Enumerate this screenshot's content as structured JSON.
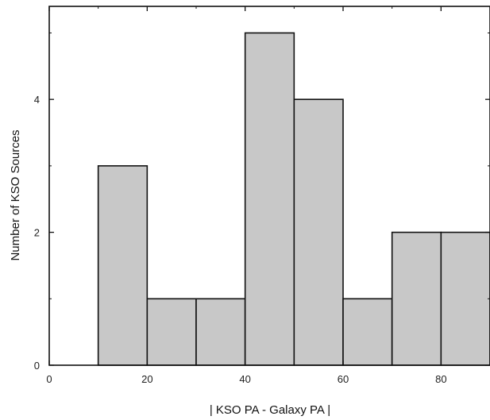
{
  "chart_data": {
    "type": "bar",
    "title": "",
    "xlabel": "| KSO PA - Galaxy PA |",
    "ylabel": "Number of KSO Sources",
    "xlim": [
      0,
      90
    ],
    "ylim": [
      0,
      5.4
    ],
    "x_ticks": [
      0,
      20,
      40,
      60,
      80
    ],
    "y_ticks": [
      0,
      2,
      4
    ],
    "x_tick_labels": [
      "0",
      "20",
      "40",
      "60",
      "80"
    ],
    "y_tick_labels": [
      "0",
      "2",
      "4"
    ],
    "bin_edges": [
      10,
      20,
      30,
      40,
      50,
      60,
      70,
      80,
      90
    ],
    "values": [
      3,
      1,
      1,
      5,
      4,
      1,
      2,
      2
    ],
    "bar_fill": "#c8c8c8",
    "bar_edge": "#111111",
    "grid": false,
    "legend": "none"
  }
}
